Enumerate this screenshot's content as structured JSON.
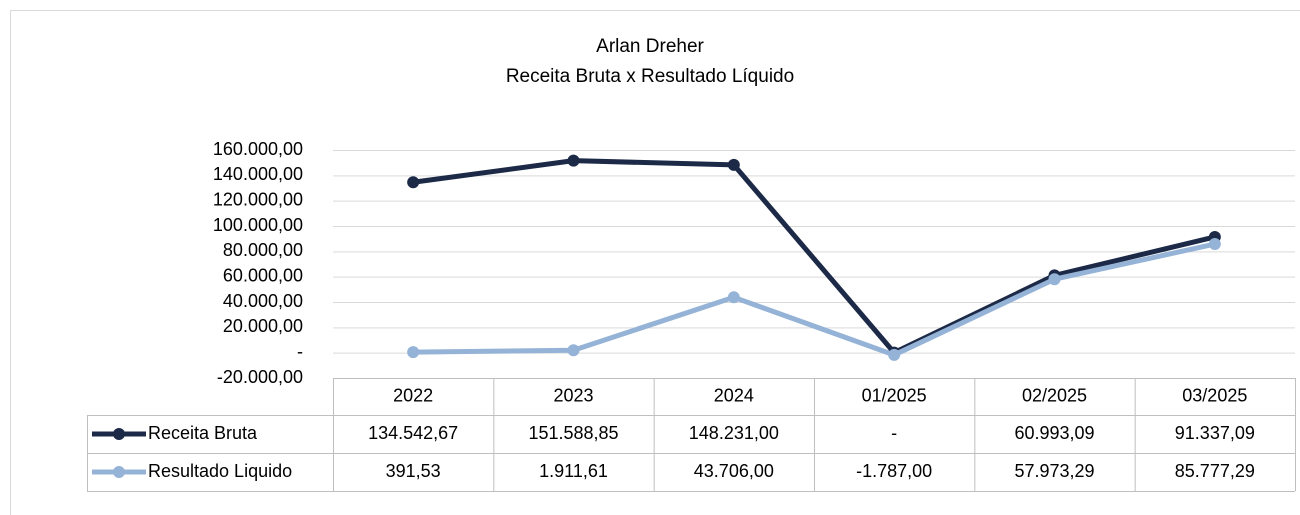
{
  "chart_data": {
    "type": "line",
    "title": "Arlan Dreher",
    "subtitle": "Receita Bruta x Resultado Líquido",
    "categories": [
      "2022",
      "2023",
      "2024",
      "01/2025",
      "02/2025",
      "03/2025"
    ],
    "series": [
      {
        "name": "Receita Bruta",
        "color": "#1c2a48",
        "values": [
          134542.67,
          151588.85,
          148231.0,
          0,
          60993.09,
          91337.09
        ],
        "value_labels": [
          "134.542,67",
          "151.588,85",
          "148.231,00",
          "-",
          "60.993,09",
          "91.337,09"
        ]
      },
      {
        "name": "Resultado Liquido",
        "color": "#95b3d7",
        "values": [
          391.53,
          1911.61,
          43706.0,
          -1787.0,
          57973.29,
          85777.29
        ],
        "value_labels": [
          "391,53",
          "1.911,61",
          "43.706,00",
          "-1.787,00",
          "57.973,29",
          "85.777,29"
        ]
      }
    ],
    "ylim": [
      -20000,
      160000
    ],
    "yticks": [
      {
        "value": -20000,
        "label": "-20.000,00"
      },
      {
        "value": 0,
        "label": "-"
      },
      {
        "value": 20000,
        "label": "20.000,00"
      },
      {
        "value": 40000,
        "label": "40.000,00"
      },
      {
        "value": 60000,
        "label": "60.000,00"
      },
      {
        "value": 80000,
        "label": "80.000,00"
      },
      {
        "value": 100000,
        "label": "100.000,00"
      },
      {
        "value": 120000,
        "label": "120.000,00"
      },
      {
        "value": 140000,
        "label": "140.000,00"
      },
      {
        "value": 160000,
        "label": "160.000,00"
      }
    ],
    "grid": true,
    "legend": "table"
  }
}
